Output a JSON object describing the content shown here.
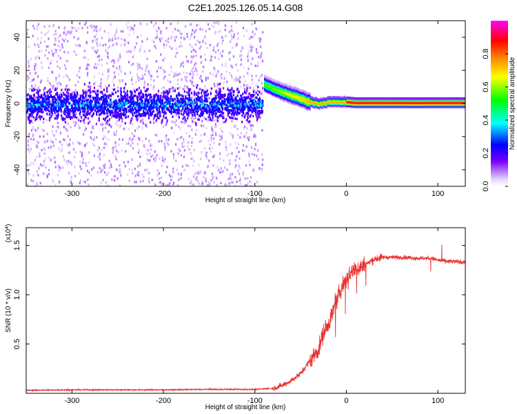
{
  "title": "C2E1.2025.126.05.14.G08",
  "chart_data": [
    {
      "type": "heatmap",
      "name": "spectrogram",
      "xlabel": "Height of straight line (km)",
      "ylabel": "Frequency (Hz)",
      "xlim": [
        -350,
        130
      ],
      "ylim": [
        -50,
        50
      ],
      "x_ticks": [
        -300,
        -200,
        -100,
        0,
        100
      ],
      "x_tick_labels": [
        "-300",
        "-200",
        "-100",
        "0",
        "100"
      ],
      "y_ticks": [
        -40,
        -20,
        0,
        20,
        40
      ],
      "y_tick_labels": [
        "-40",
        "-20",
        "0",
        "20",
        "40"
      ],
      "colorbar": {
        "label": "Normalized spectral amplitude",
        "range": [
          0,
          1
        ],
        "ticks": [
          0.0,
          0.2,
          0.4,
          0.6,
          0.8
        ],
        "tick_labels": [
          "0.0",
          "0.2",
          "0.4",
          "0.6",
          "0.8"
        ]
      },
      "noise_region": {
        "x_range": [
          -350,
          -92
        ],
        "band_center_hz": 0,
        "band_halfwidth_hz": 10
      },
      "signal_track": {
        "x": [
          -90,
          -80,
          -70,
          -60,
          -50,
          -40,
          -30,
          -20,
          -10,
          0,
          10,
          20,
          40,
          60,
          80,
          100,
          130
        ],
        "freq": [
          12,
          9,
          7,
          5,
          3,
          1,
          0,
          1,
          1,
          1,
          0.5,
          0.5,
          0.5,
          0.5,
          0.5,
          0.5,
          0.5
        ]
      }
    },
    {
      "type": "line",
      "name": "snr",
      "xlabel": "Height of straight line (km)",
      "ylabel": "SNR (10 * v/v)",
      "y_multiplier": "(x10",
      "y_multiplier_exp": "4",
      "y_multiplier_close": ")",
      "xlim": [
        -350,
        130
      ],
      "ylim": [
        0,
        16800
      ],
      "x_ticks": [
        -300,
        -200,
        -100,
        0,
        100
      ],
      "x_tick_labels": [
        "-300",
        "-200",
        "-100",
        "0",
        "100"
      ],
      "y_ticks": [
        5000,
        10000,
        15000
      ],
      "y_tick_labels": [
        "0.5",
        "1.0",
        "1.5"
      ],
      "color": "#e83030",
      "series": [
        {
          "name": "SNR",
          "x": [
            -350,
            -300,
            -250,
            -200,
            -150,
            -100,
            -90,
            -80,
            -70,
            -60,
            -50,
            -40,
            -30,
            -25,
            -20,
            -15,
            -10,
            -5,
            0,
            5,
            10,
            15,
            20,
            25,
            30,
            40,
            50,
            60,
            70,
            80,
            90,
            95,
            100,
            105,
            110,
            120,
            130
          ],
          "y": [
            300,
            350,
            350,
            350,
            400,
            400,
            450,
            500,
            800,
            1300,
            2000,
            3300,
            4500,
            6200,
            7000,
            8200,
            9500,
            10800,
            11600,
            12300,
            12600,
            12800,
            13000,
            13300,
            13600,
            13800,
            13800,
            13800,
            13750,
            13700,
            13700,
            13650,
            13500,
            13450,
            13400,
            13350,
            13300
          ]
        }
      ]
    }
  ]
}
